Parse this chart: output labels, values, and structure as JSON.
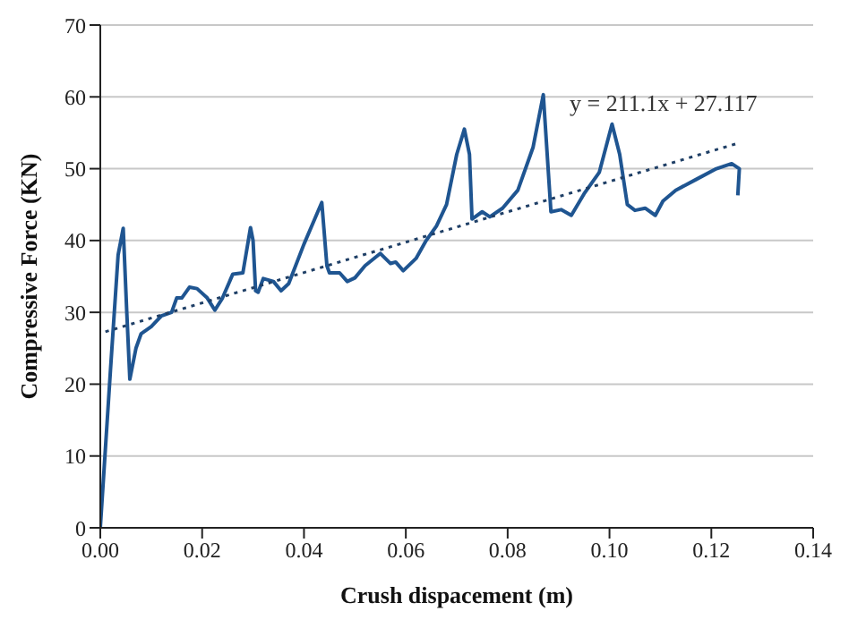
{
  "chart_data": {
    "type": "line",
    "xlabel": "Crush dispacement (m)",
    "ylabel": "Compressive Force (KN)",
    "xlim": [
      0,
      0.14
    ],
    "xticks": [
      {
        "value": 0,
        "label": "0.00"
      },
      {
        "value": 0.02,
        "label": "0.02"
      },
      {
        "value": 0.04,
        "label": "0.04"
      },
      {
        "value": 0.06,
        "label": "0.06"
      },
      {
        "value": 0.08,
        "label": "0.08"
      },
      {
        "value": 0.1,
        "label": "0.10"
      },
      {
        "value": 0.12,
        "label": "0.12"
      },
      {
        "value": 0.14,
        "label": "0.14"
      }
    ],
    "ylim": [
      0,
      70
    ],
    "yticks": [
      0,
      10,
      20,
      30,
      40,
      50,
      60,
      70
    ],
    "grid": "y",
    "marker": "none",
    "annotations": [
      "y = 211.1x + 27.117"
    ],
    "series": [
      {
        "color": "#1f5591",
        "line_style": "solid",
        "x": [
          0,
          0.002,
          0.0035,
          0.0045,
          0.0052,
          0.0058,
          0.007,
          0.008,
          0.01,
          0.012,
          0.014,
          0.015,
          0.016,
          0.0175,
          0.019,
          0.021,
          0.0225,
          0.024,
          0.026,
          0.028,
          0.0295,
          0.03,
          0.0305,
          0.031,
          0.032,
          0.034,
          0.0355,
          0.037,
          0.04,
          0.0435,
          0.0445,
          0.045,
          0.047,
          0.0485,
          0.05,
          0.052,
          0.055,
          0.057,
          0.058,
          0.0595,
          0.062,
          0.064,
          0.066,
          0.068,
          0.07,
          0.0715,
          0.0725,
          0.073,
          0.075,
          0.0765,
          0.079,
          0.082,
          0.085,
          0.087,
          0.0885,
          0.0905,
          0.0925,
          0.095,
          0.098,
          0.1005,
          0.102,
          0.1035,
          0.105,
          0.107,
          0.109,
          0.1105,
          0.113,
          0.117,
          0.121,
          0.124,
          0.1255,
          0.1252
        ],
        "values": [
          0,
          22,
          38,
          41.7,
          30,
          20.7,
          25,
          27,
          28,
          29.5,
          30,
          32,
          32,
          33.5,
          33.3,
          32,
          30.3,
          32,
          35.3,
          35.5,
          41.8,
          40,
          33,
          32.8,
          34.7,
          34.3,
          33,
          34,
          39.5,
          45.3,
          36.5,
          35.5,
          35.5,
          34.3,
          34.8,
          36.5,
          38.2,
          36.8,
          37,
          35.8,
          37.5,
          40,
          42,
          45,
          52,
          55.5,
          52,
          43,
          44,
          43.3,
          44.5,
          47,
          53,
          60.3,
          44,
          44.3,
          43.5,
          46.5,
          49.5,
          56.2,
          52,
          45,
          44.2,
          44.5,
          43.5,
          45.5,
          47,
          48.5,
          50,
          50.7,
          50,
          46.3
        ]
      },
      {
        "type": "line",
        "color": "#1f3f66",
        "line_style": "dotted",
        "x": [
          0.001,
          0.125
        ],
        "values": [
          27.3,
          53.5
        ]
      }
    ]
  }
}
